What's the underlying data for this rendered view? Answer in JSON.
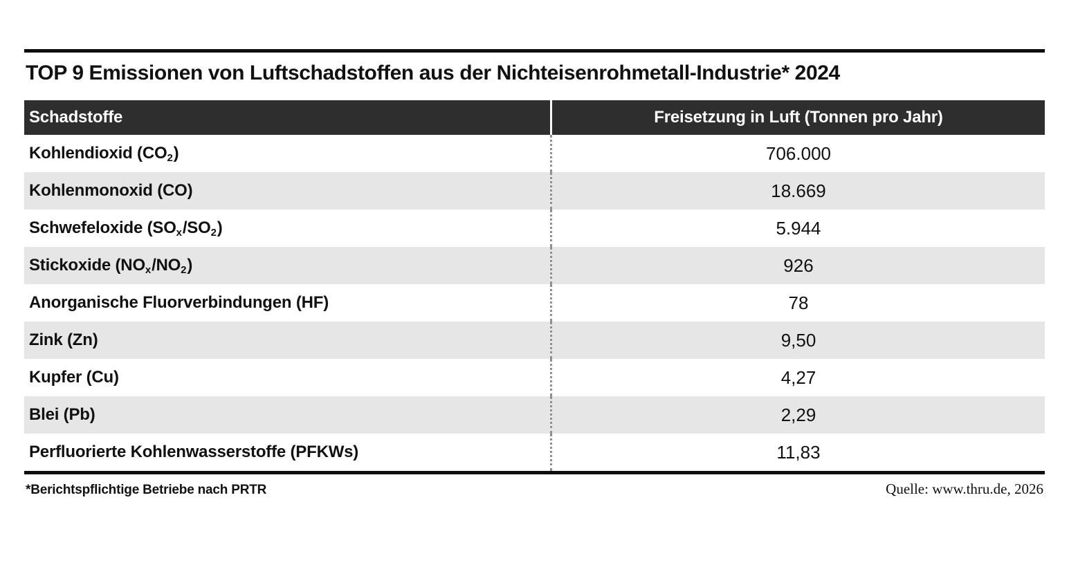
{
  "page": {
    "title": "TOP 9 Emissionen von Luftschadstoffen aus der Nichteisenrohmetall-Industrie* 2024"
  },
  "table": {
    "columns": [
      {
        "label": "Schadstoffe"
      },
      {
        "label": "Freisetzung in Luft (Tonnen pro Jahr)"
      }
    ],
    "rows": [
      {
        "label_parts": [
          {
            "text": "Kohlendioxid (CO"
          },
          {
            "text": "2",
            "sub": true
          },
          {
            "text": ")"
          }
        ],
        "value": "706.000"
      },
      {
        "label_parts": [
          {
            "text": "Kohlenmonoxid (CO)"
          }
        ],
        "value": "18.669"
      },
      {
        "label_parts": [
          {
            "text": "Schwefeloxide (SO"
          },
          {
            "text": "x",
            "sub": true
          },
          {
            "text": "/SO"
          },
          {
            "text": "2",
            "sub": true
          },
          {
            "text": ")"
          }
        ],
        "value": "5.944"
      },
      {
        "label_parts": [
          {
            "text": "Stickoxide (NO"
          },
          {
            "text": "x",
            "sub": true
          },
          {
            "text": "/NO"
          },
          {
            "text": "2",
            "sub": true
          },
          {
            "text": ")"
          }
        ],
        "value": "926"
      },
      {
        "label_parts": [
          {
            "text": "Anorganische Fluorverbindungen (HF)"
          }
        ],
        "value": "78"
      },
      {
        "label_parts": [
          {
            "text": "Zink (Zn)"
          }
        ],
        "value": "9,50"
      },
      {
        "label_parts": [
          {
            "text": "Kupfer (Cu)"
          }
        ],
        "value": "4,27"
      },
      {
        "label_parts": [
          {
            "text": "Blei (Pb)"
          }
        ],
        "value": "2,29"
      },
      {
        "label_parts": [
          {
            "text": "Perfluorierte Kohlenwasserstoffe (PFKWs)"
          }
        ],
        "value": "11,83"
      }
    ]
  },
  "footer": {
    "footnote": "*Berichtspflichtige Betriebe nach PRTR",
    "source": "Quelle: www.thru.de, 2026"
  },
  "colors": {
    "header_bg": "#2e2e2e",
    "row_alt_bg": "#e6e6e6",
    "text": "#111111",
    "header_text": "#ffffff",
    "rule": "#0d0d0d",
    "divider_dotted": "#8f8f8f"
  },
  "chart_data": {
    "type": "table",
    "title": "TOP 9 Emissionen von Luftschadstoffen aus der Nichteisenrohmetall-Industrie* 2024",
    "columns": [
      "Schadstoffe",
      "Freisetzung in Luft (Tonnen pro Jahr)"
    ],
    "categories": [
      "Kohlendioxid (CO2)",
      "Kohlenmonoxid (CO)",
      "Schwefeloxide (SOx/SO2)",
      "Stickoxide (NOx/NO2)",
      "Anorganische Fluorverbindungen (HF)",
      "Zink (Zn)",
      "Kupfer (Cu)",
      "Blei (Pb)",
      "Perfluorierte Kohlenwasserstoffe (PFKWs)"
    ],
    "values_display": [
      "706.000",
      "18.669",
      "5.944",
      "926",
      "78",
      "9,50",
      "4,27",
      "2,29",
      "11,83"
    ],
    "values_tonnes_per_year": [
      706000,
      18669,
      5944,
      926,
      78,
      9.5,
      4.27,
      2.29,
      11.83
    ],
    "footnote": "*Berichtspflichtige Betriebe nach PRTR",
    "source": "Quelle: www.thru.de, 2026",
    "layout": "two-column striped table, dark header band, dotted column divider"
  }
}
